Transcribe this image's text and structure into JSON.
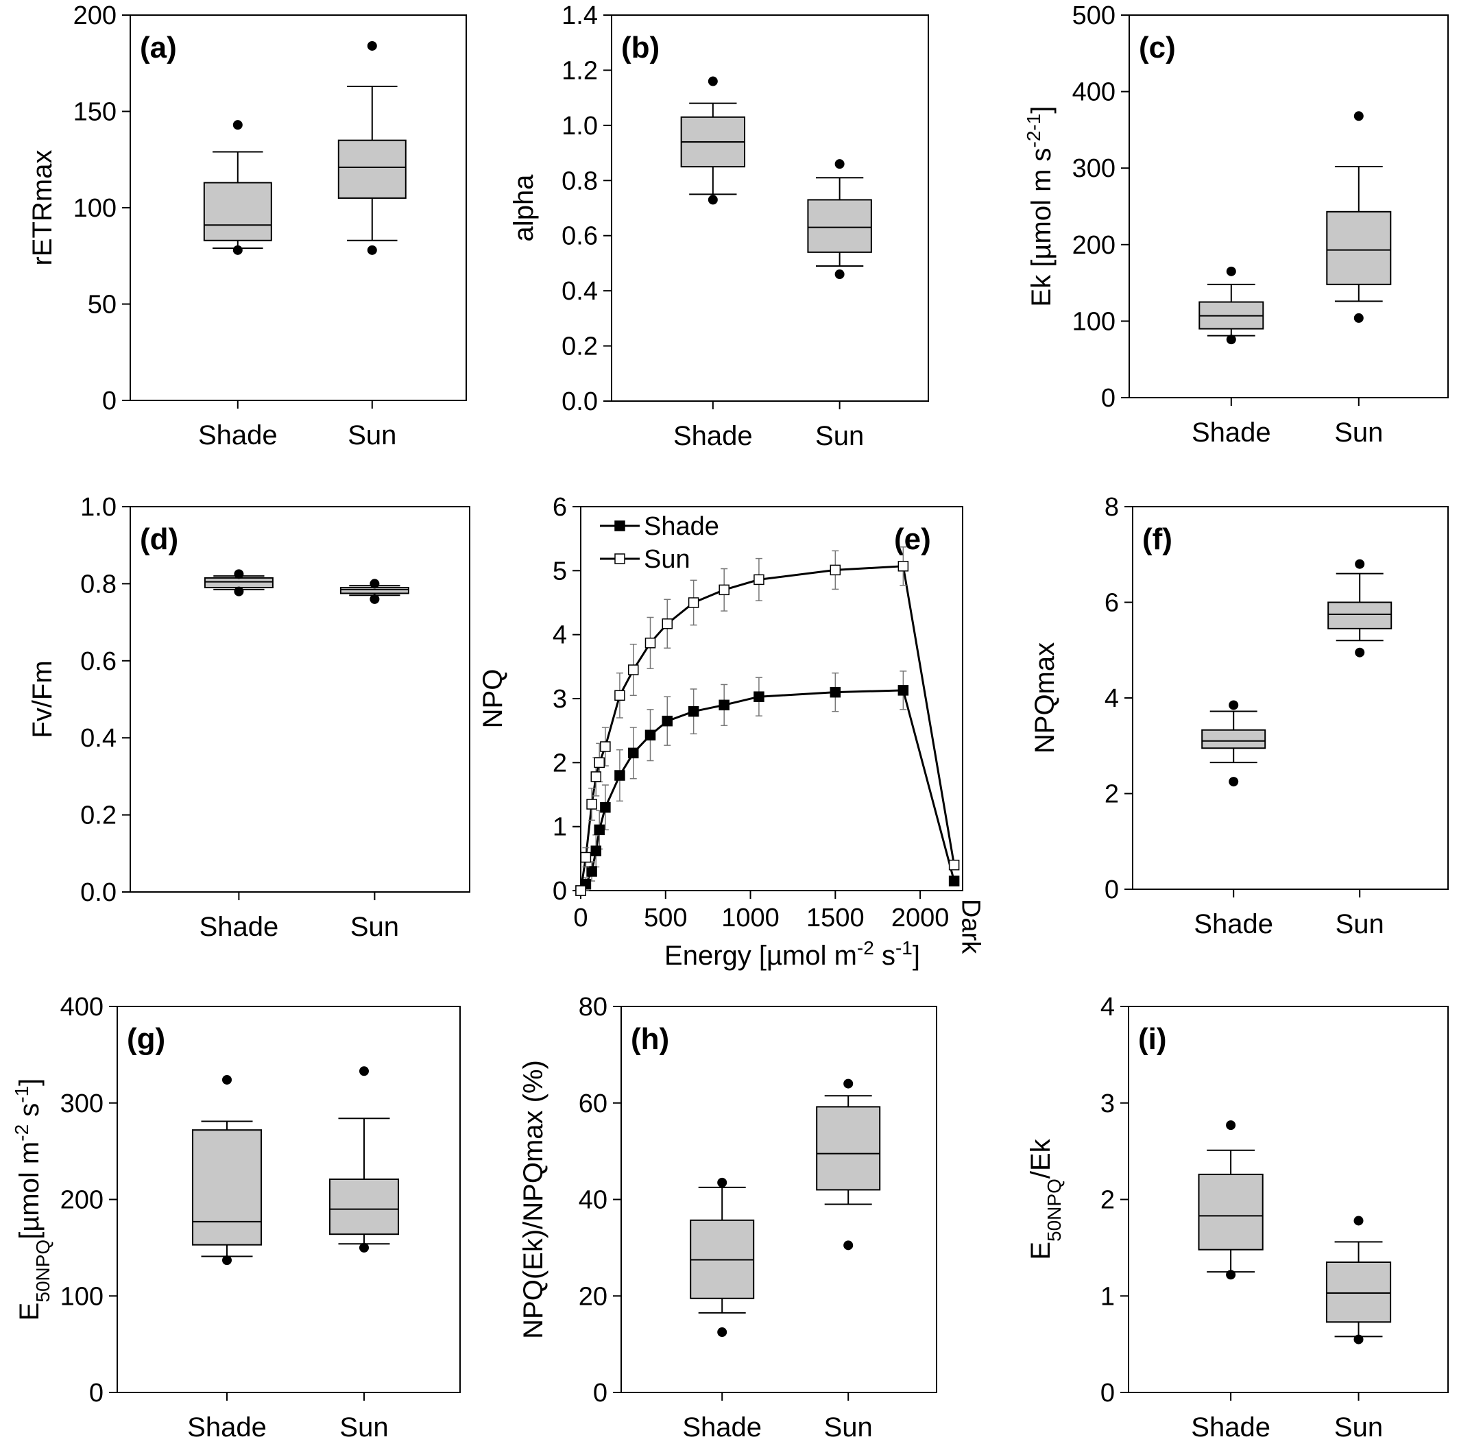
{
  "chart_data": [
    {
      "id": "a",
      "type": "box",
      "panel_label": "(a)",
      "ylabel": "rETRmax",
      "ylim": [
        0,
        200
      ],
      "yticks": [
        0,
        50,
        100,
        150,
        200
      ],
      "categories": [
        "Shade",
        "Sun"
      ],
      "boxes": [
        {
          "q1": 83,
          "median": 91,
          "q3": 113,
          "whisker_low": 79,
          "whisker_high": 129,
          "outliers": [
            78,
            143
          ]
        },
        {
          "q1": 105,
          "median": 121,
          "q3": 135,
          "whisker_low": 83,
          "whisker_high": 163,
          "outliers": [
            78,
            184
          ]
        }
      ]
    },
    {
      "id": "b",
      "type": "box",
      "panel_label": "(b)",
      "ylabel": "alpha",
      "ylim": [
        0,
        1.4
      ],
      "yticks": [
        "0.0",
        "0.2",
        "0.4",
        "0.6",
        "0.8",
        "1.0",
        "1.2",
        "1.4"
      ],
      "categories": [
        "Shade",
        "Sun"
      ],
      "boxes": [
        {
          "q1": 0.85,
          "median": 0.94,
          "q3": 1.03,
          "whisker_low": 0.75,
          "whisker_high": 1.08,
          "outliers": [
            0.73,
            1.16
          ]
        },
        {
          "q1": 0.54,
          "median": 0.63,
          "q3": 0.73,
          "whisker_low": 0.49,
          "whisker_high": 0.81,
          "outliers": [
            0.46,
            0.86
          ]
        }
      ]
    },
    {
      "id": "c",
      "type": "box",
      "panel_label": "(c)",
      "ylabel_main": "Ek [µmol m",
      "ylabel_sup1": "-2",
      "ylabel_mid": " s",
      "ylabel_sup2": "-1",
      "ylabel_end": "]",
      "ylim": [
        0,
        500
      ],
      "yticks": [
        0,
        100,
        200,
        300,
        400,
        500
      ],
      "categories": [
        "Shade",
        "Sun"
      ],
      "boxes": [
        {
          "q1": 90,
          "median": 107,
          "q3": 125,
          "whisker_low": 81,
          "whisker_high": 148,
          "outliers": [
            76,
            165
          ]
        },
        {
          "q1": 148,
          "median": 193,
          "q3": 243,
          "whisker_low": 126,
          "whisker_high": 302,
          "outliers": [
            104,
            368
          ]
        }
      ]
    },
    {
      "id": "d",
      "type": "box",
      "panel_label": "(d)",
      "ylabel": "Fv/Fm",
      "ylim": [
        0,
        1.0
      ],
      "yticks": [
        "0.0",
        "0.2",
        "0.4",
        "0.6",
        "0.8",
        "1.0"
      ],
      "categories": [
        "Shade",
        "Sun"
      ],
      "boxes": [
        {
          "q1": 0.79,
          "median": 0.805,
          "q3": 0.815,
          "whisker_low": 0.785,
          "whisker_high": 0.82,
          "outliers": [
            0.78,
            0.825
          ]
        },
        {
          "q1": 0.775,
          "median": 0.785,
          "q3": 0.79,
          "whisker_low": 0.77,
          "whisker_high": 0.795,
          "outliers": [
            0.76,
            0.8
          ]
        }
      ]
    },
    {
      "id": "e",
      "type": "line",
      "panel_label": "(e)",
      "ylabel": "NPQ",
      "ylim": [
        0,
        6
      ],
      "yticks": [
        0,
        1,
        2,
        3,
        4,
        5,
        6
      ],
      "xlabel_main": "Energy [µmol m",
      "xlabel_sup1": "-2",
      "xlabel_mid": " s",
      "xlabel_sup2": "-1",
      "xlabel_end": "]",
      "xlim": [
        0,
        2250
      ],
      "xticks": [
        0,
        500,
        1000,
        1500,
        2000
      ],
      "x_extra_label": "Dark",
      "x": [
        0,
        30,
        65,
        90,
        110,
        145,
        230,
        310,
        410,
        510,
        665,
        845,
        1050,
        1500,
        1900,
        2200
      ],
      "series": [
        {
          "name": "Shade",
          "marker": "filled-square",
          "values": [
            0.0,
            0.1,
            0.3,
            0.62,
            0.95,
            1.3,
            1.8,
            2.15,
            2.43,
            2.65,
            2.8,
            2.9,
            3.03,
            3.1,
            3.13,
            0.15
          ],
          "errors": [
            0.05,
            0.1,
            0.15,
            0.25,
            0.3,
            0.35,
            0.4,
            0.4,
            0.4,
            0.38,
            0.35,
            0.32,
            0.3,
            0.3,
            0.3,
            0.05
          ]
        },
        {
          "name": "Sun",
          "marker": "open-square",
          "values": [
            0.0,
            0.52,
            1.35,
            1.78,
            2.0,
            2.25,
            3.05,
            3.45,
            3.87,
            4.17,
            4.5,
            4.7,
            4.86,
            5.01,
            5.07,
            0.4
          ],
          "errors": [
            0.05,
            0.15,
            0.25,
            0.3,
            0.3,
            0.3,
            0.35,
            0.4,
            0.4,
            0.38,
            0.35,
            0.33,
            0.33,
            0.3,
            0.3,
            0.05
          ]
        }
      ]
    },
    {
      "id": "f",
      "type": "box",
      "panel_label": "(f)",
      "ylabel": "NPQmax",
      "ylim": [
        0,
        8
      ],
      "yticks": [
        0,
        2,
        4,
        6,
        8
      ],
      "categories": [
        "Shade",
        "Sun"
      ],
      "boxes": [
        {
          "q1": 2.95,
          "median": 3.1,
          "q3": 3.33,
          "whisker_low": 2.65,
          "whisker_high": 3.72,
          "outliers": [
            2.25,
            3.85
          ]
        },
        {
          "q1": 5.45,
          "median": 5.75,
          "q3": 6.0,
          "whisker_low": 5.2,
          "whisker_high": 6.6,
          "outliers": [
            4.95,
            6.8
          ]
        }
      ]
    },
    {
      "id": "g",
      "type": "box",
      "panel_label": "(g)",
      "ylabel_main": "E",
      "ylabel_sub": "50NPQ",
      "ylabel_mid": "[µmol m",
      "ylabel_sup1": "-2",
      "ylabel_mid2": " s",
      "ylabel_sup2": "-1",
      "ylabel_end": "]",
      "ylim": [
        0,
        400
      ],
      "yticks": [
        0,
        100,
        200,
        300,
        400
      ],
      "categories": [
        "Shade",
        "Sun"
      ],
      "boxes": [
        {
          "q1": 153,
          "median": 177,
          "q3": 272,
          "whisker_low": 141,
          "whisker_high": 281,
          "outliers": [
            137,
            324
          ]
        },
        {
          "q1": 164,
          "median": 190,
          "q3": 221,
          "whisker_low": 154,
          "whisker_high": 284,
          "outliers": [
            150,
            333
          ]
        }
      ]
    },
    {
      "id": "h",
      "type": "box",
      "panel_label": "(h)",
      "ylabel": "NPQ(Ek)/NPQmax (%)",
      "ylim": [
        0,
        80
      ],
      "yticks": [
        0,
        20,
        40,
        60,
        80
      ],
      "categories": [
        "Shade",
        "Sun"
      ],
      "boxes": [
        {
          "q1": 19.5,
          "median": 27.5,
          "q3": 35.7,
          "whisker_low": 16.5,
          "whisker_high": 42.5,
          "outliers": [
            12.5,
            43.5
          ]
        },
        {
          "q1": 42,
          "median": 49.5,
          "q3": 59.2,
          "whisker_low": 39,
          "whisker_high": 61.5,
          "outliers": [
            30.5,
            64
          ]
        }
      ]
    },
    {
      "id": "i",
      "type": "box",
      "panel_label": "(i)",
      "ylabel_main": "E",
      "ylabel_sub": "50NPQ",
      "ylabel_end": "/Ek",
      "ylim": [
        0,
        4
      ],
      "yticks": [
        0,
        1,
        2,
        3,
        4
      ],
      "categories": [
        "Shade",
        "Sun"
      ],
      "boxes": [
        {
          "q1": 1.48,
          "median": 1.83,
          "q3": 2.26,
          "whisker_low": 1.25,
          "whisker_high": 2.51,
          "outliers": [
            1.22,
            2.77
          ]
        },
        {
          "q1": 0.73,
          "median": 1.03,
          "q3": 1.35,
          "whisker_low": 0.58,
          "whisker_high": 1.56,
          "outliers": [
            0.55,
            1.78
          ]
        }
      ]
    }
  ]
}
